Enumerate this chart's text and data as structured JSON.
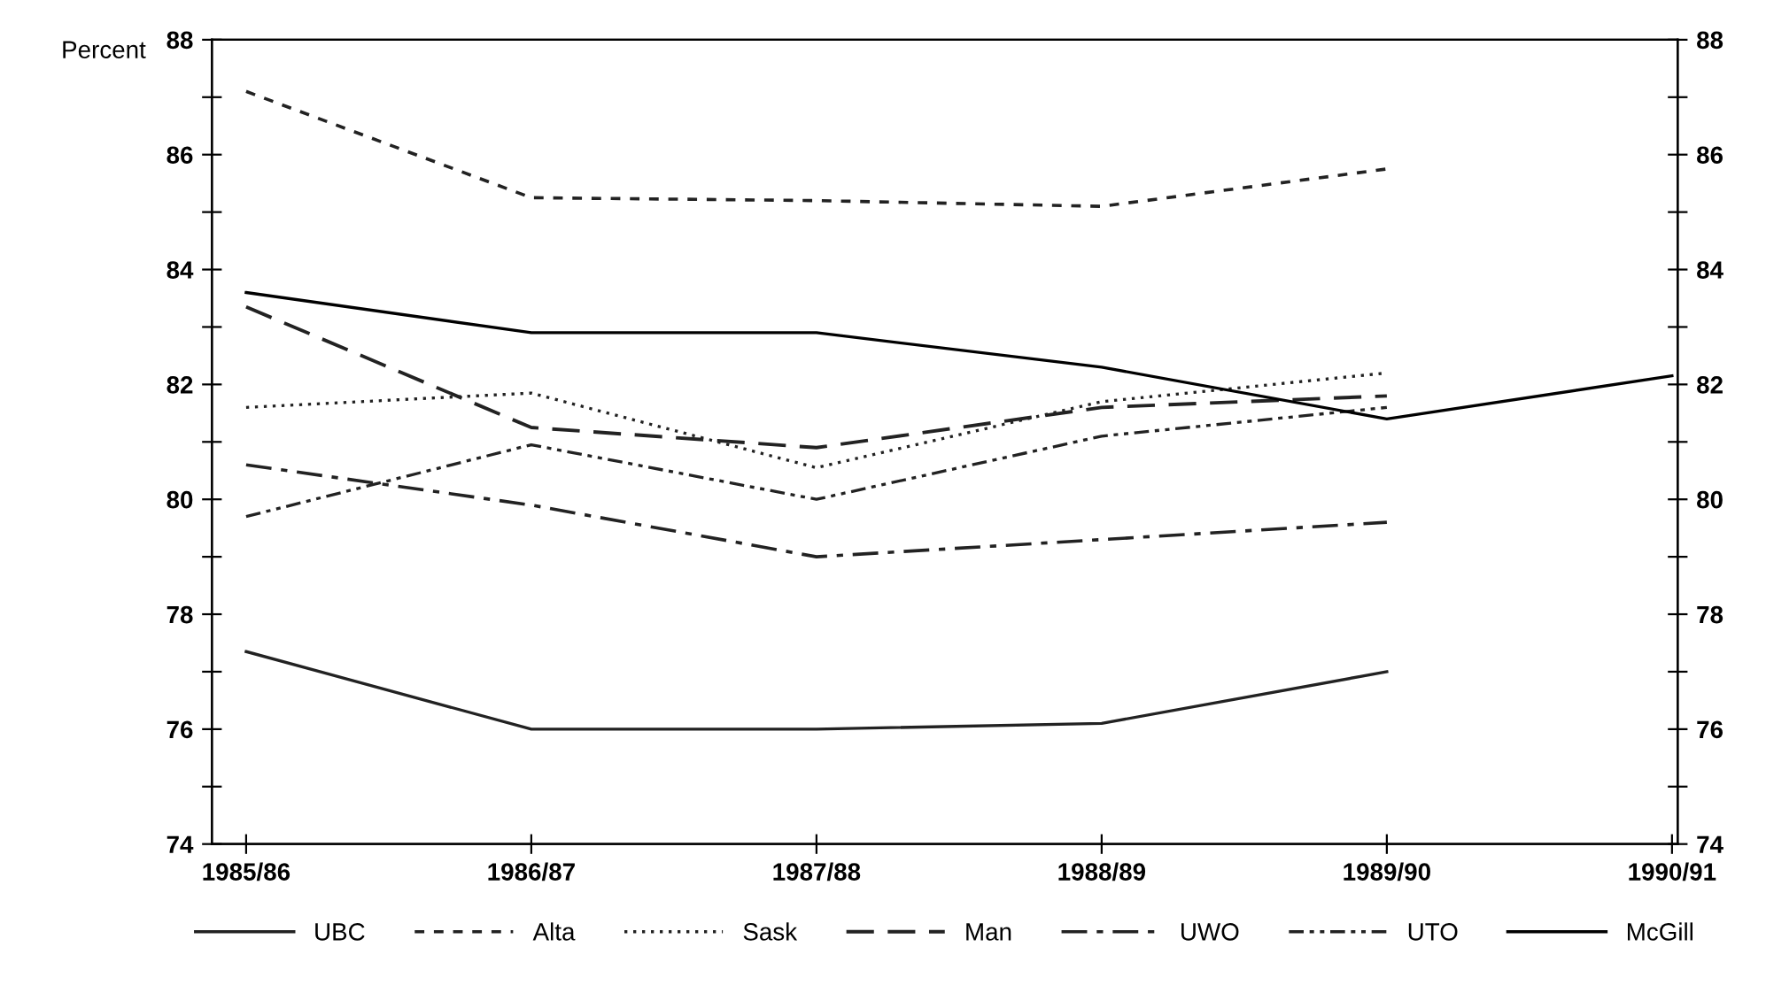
{
  "chart_data": {
    "type": "line",
    "ylabel": "Percent",
    "categories": [
      "1985/86",
      "1986/87",
      "1987/88",
      "1988/89",
      "1989/90",
      "1990/91"
    ],
    "series": [
      {
        "name": "UBC",
        "color": "#222222",
        "line_style": "solid",
        "values": [
          77.35,
          76.0,
          76.0,
          76.1,
          77.0,
          null
        ]
      },
      {
        "name": "Alta",
        "color": "#222222",
        "line_style": "dashed",
        "values": [
          87.1,
          85.25,
          85.2,
          85.1,
          85.75,
          null
        ]
      },
      {
        "name": "Sask",
        "color": "#222222",
        "line_style": "dotted",
        "values": [
          81.6,
          81.85,
          80.55,
          81.7,
          82.2,
          null
        ]
      },
      {
        "name": "Man",
        "color": "#222222",
        "line_style": "longdash",
        "values": [
          83.35,
          81.25,
          80.9,
          81.6,
          81.8,
          null
        ]
      },
      {
        "name": "UWO",
        "color": "#222222",
        "line_style": "dashdot",
        "values": [
          80.6,
          79.9,
          79.0,
          79.3,
          79.6,
          null
        ]
      },
      {
        "name": "UTO",
        "color": "#222222",
        "line_style": "dashdotdot",
        "values": [
          79.7,
          80.95,
          80.0,
          81.1,
          81.6,
          null
        ]
      },
      {
        "name": "McGill",
        "color": "#000000",
        "line_style": "solid",
        "values": [
          83.6,
          82.9,
          82.9,
          82.3,
          81.4,
          82.15
        ]
      }
    ],
    "ylim": [
      74,
      88
    ],
    "yticks": [
      74,
      {
        "value": 75,
        "label": null
      },
      76,
      {
        "value": 77,
        "label": null
      },
      78,
      {
        "value": 79,
        "label": null
      },
      80,
      {
        "value": 81,
        "label": null
      },
      82,
      {
        "value": 83,
        "label": null
      },
      84,
      {
        "value": 85,
        "label": null
      },
      86,
      {
        "value": 87,
        "label": null
      },
      88
    ],
    "y2lim": [
      74,
      88
    ],
    "y2ticks": [
      74,
      {
        "value": 75,
        "label": null
      },
      76,
      {
        "value": 77,
        "label": null
      },
      78,
      {
        "value": 79,
        "label": null
      },
      80,
      {
        "value": 81,
        "label": null
      },
      82,
      {
        "value": 83,
        "label": null
      },
      84,
      {
        "value": 85,
        "label": null
      },
      86,
      {
        "value": 87,
        "label": null
      },
      88
    ],
    "grid": false,
    "legend": "bottom",
    "marker": "none"
  }
}
